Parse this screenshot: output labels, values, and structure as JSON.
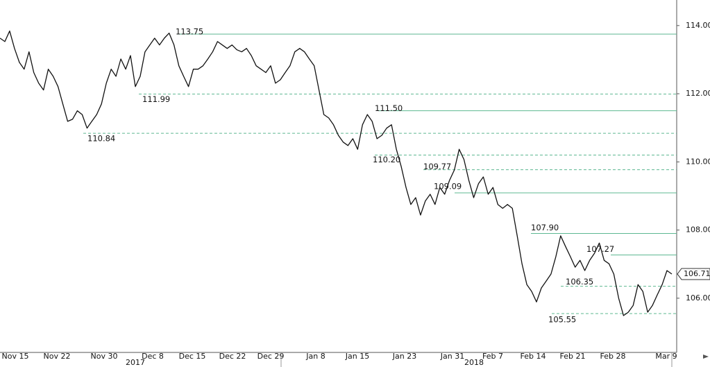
{
  "chart_data": {
    "type": "line",
    "color": "#111111",
    "level_color": "#5cb891",
    "values": [
      113.63,
      113.53,
      113.84,
      113.33,
      112.92,
      112.72,
      113.23,
      112.62,
      112.31,
      112.11,
      112.72,
      112.51,
      112.21,
      111.7,
      111.19,
      111.25,
      111.5,
      111.39,
      110.99,
      111.19,
      111.39,
      111.7,
      112.31,
      112.72,
      112.51,
      113.02,
      112.72,
      113.12,
      112.21,
      112.51,
      113.23,
      113.43,
      113.63,
      113.43,
      113.63,
      113.78,
      113.43,
      112.82,
      112.51,
      112.21,
      112.72,
      112.72,
      112.82,
      113.02,
      113.23,
      113.53,
      113.43,
      113.33,
      113.43,
      113.29,
      113.23,
      113.33,
      113.12,
      112.82,
      112.72,
      112.62,
      112.82,
      112.31,
      112.41,
      112.62,
      112.82,
      113.23,
      113.33,
      113.23,
      113.02,
      112.82,
      112.11,
      111.39,
      111.29,
      111.09,
      110.78,
      110.58,
      110.48,
      110.68,
      110.37,
      111.09,
      111.39,
      111.19,
      110.68,
      110.78,
      110.99,
      111.09,
      110.37,
      109.87,
      109.25,
      108.75,
      108.95,
      108.44,
      108.85,
      109.05,
      108.75,
      109.25,
      109.05,
      109.46,
      109.76,
      110.37,
      110.07,
      109.46,
      108.95,
      109.36,
      109.56,
      109.05,
      109.25,
      108.75,
      108.64,
      108.75,
      108.64,
      107.83,
      107.01,
      106.4,
      106.2,
      105.89,
      106.3,
      106.5,
      106.71,
      107.22,
      107.83,
      107.52,
      107.22,
      106.91,
      107.11,
      106.81,
      107.11,
      107.32,
      107.62,
      107.11,
      107.01,
      106.71,
      106.0,
      105.49,
      105.59,
      105.79,
      106.4,
      106.2,
      105.59,
      105.79,
      106.1,
      106.4,
      106.81,
      106.71
    ],
    "ylim": [
      104.47,
      114.75
    ],
    "yticks": [
      {
        "value": 106,
        "label": "106.00"
      },
      {
        "value": 108,
        "label": "108.00"
      },
      {
        "value": 110,
        "label": "110.00"
      },
      {
        "value": 112,
        "label": "112.00"
      },
      {
        "value": 114,
        "label": "114.00"
      }
    ],
    "xtick_labels": [
      "Nov 15",
      "Nov 22",
      "Nov 30",
      "Dec 8",
      "Dec 15",
      "Dec 22",
      "Dec 29",
      "Jan 8",
      "Jan 15",
      "Jan 23",
      "Jan 31",
      "Feb 7",
      "Feb 14",
      "Feb 21",
      "Feb 28",
      "Mar 9"
    ],
    "year_labels": [
      "2017",
      "2018"
    ],
    "last_value": 106.71,
    "levels": [
      {
        "value": 113.75,
        "label": "113.75",
        "style": "solid"
      },
      {
        "value": 111.99,
        "label": "111.99",
        "style": "dashed"
      },
      {
        "value": 110.84,
        "label": "110.84",
        "style": "dashed"
      },
      {
        "value": 111.5,
        "label": "111.50",
        "style": "solid"
      },
      {
        "value": 110.2,
        "label": "110.20",
        "style": "dashed"
      },
      {
        "value": 109.77,
        "label": "109.77",
        "style": "dashed"
      },
      {
        "value": 109.09,
        "label": "109.09",
        "style": "solid"
      },
      {
        "value": 107.9,
        "label": "107.90",
        "style": "solid"
      },
      {
        "value": 107.27,
        "label": "107.27",
        "style": "solid"
      },
      {
        "value": 106.35,
        "label": "106.35",
        "style": "dashed"
      },
      {
        "value": 105.55,
        "label": "105.55",
        "style": "dashed"
      }
    ]
  }
}
